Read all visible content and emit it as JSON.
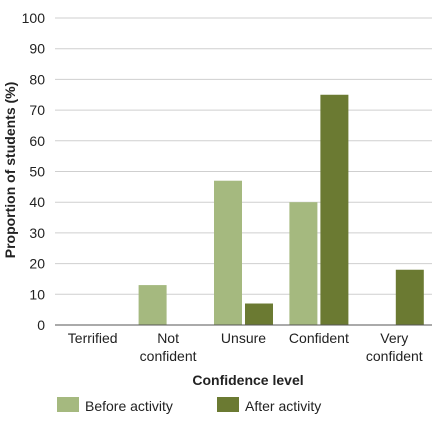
{
  "chart_data": {
    "type": "bar",
    "title": "",
    "xlabel": "Confidence level",
    "ylabel": "Proportion of students (%)",
    "ylim": [
      0,
      100
    ],
    "yticks": [
      0,
      10,
      20,
      30,
      40,
      50,
      60,
      70,
      80,
      90,
      100
    ],
    "grid": true,
    "legend_position": "bottom",
    "categories": [
      [
        "Terrified"
      ],
      [
        "Not",
        "confident"
      ],
      [
        "Unsure"
      ],
      [
        "Confident"
      ],
      [
        "Very",
        "confident"
      ]
    ],
    "series": [
      {
        "name": "Before activity",
        "color": "#a5b97f",
        "values": [
          0,
          13,
          47,
          40,
          0
        ]
      },
      {
        "name": "After activity",
        "color": "#6b7a32",
        "values": [
          0,
          0,
          7,
          75,
          18
        ]
      }
    ]
  }
}
